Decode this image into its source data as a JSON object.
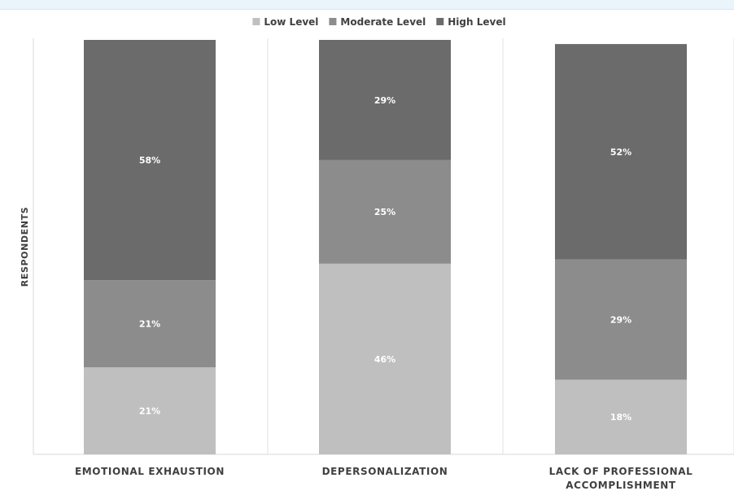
{
  "chart_data": {
    "type": "bar",
    "stacked": true,
    "normalized_percent": true,
    "categories": [
      [
        "EMOTIONAL EXHAUSTION"
      ],
      [
        "DEPERSONALIZATION"
      ],
      [
        "LACK OF PROFESSIONAL",
        "ACCOMPLISHMENT"
      ]
    ],
    "series": [
      {
        "name": "Low Level",
        "color": "#bfbfbf",
        "values": [
          21,
          46,
          18
        ]
      },
      {
        "name": "Moderate Level",
        "color": "#8c8c8c",
        "values": [
          21,
          25,
          29
        ]
      },
      {
        "name": "High Level",
        "color": "#6b6b6b",
        "values": [
          58,
          29,
          52
        ]
      }
    ],
    "data_labels": [
      [
        "21%",
        "46%",
        "18%"
      ],
      [
        "21%",
        "25%",
        "29%"
      ],
      [
        "58%",
        "29%",
        "52%"
      ]
    ],
    "title": "",
    "xlabel": "",
    "ylabel": "RESPONDENTS",
    "ylim": [
      0,
      100
    ],
    "grid": false,
    "legend_position": "top-center"
  }
}
